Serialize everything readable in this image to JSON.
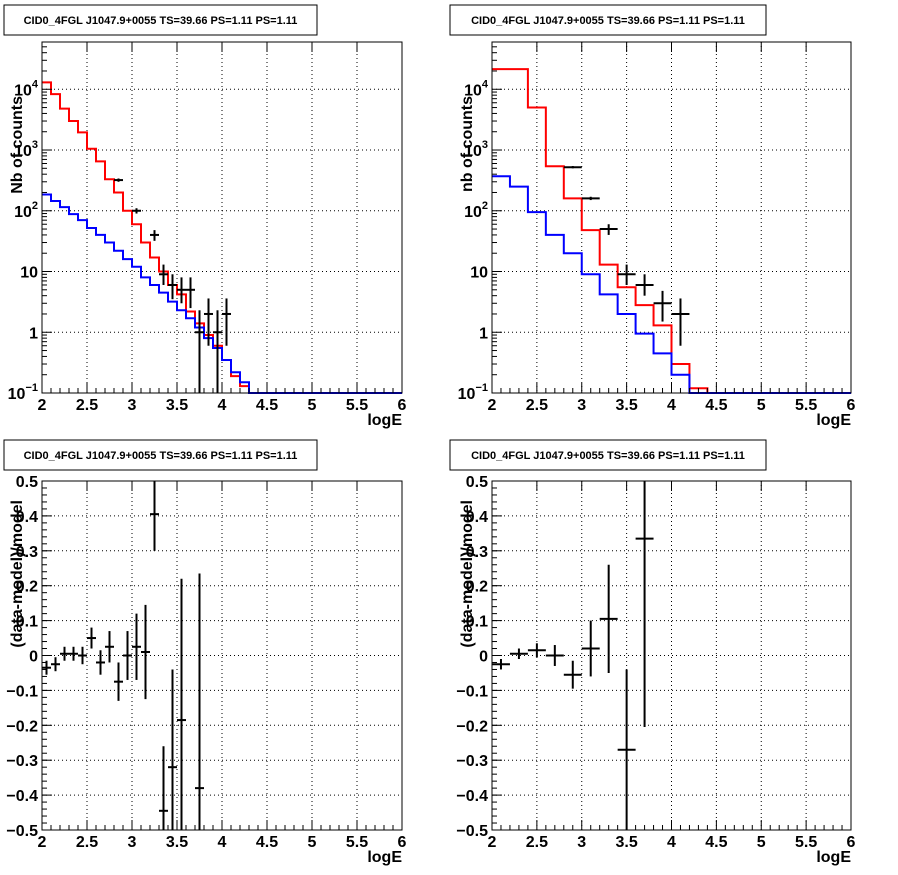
{
  "chart_data": [
    {
      "id": "top-left",
      "type": "histogram",
      "title": "CID0_4FGL J1047.9+0055 TS=39.66 PS=1.11 PS=1.11",
      "xlabel": "logE",
      "ylabel": "Nb of counts",
      "xlim": [
        2,
        6
      ],
      "ylim": [
        0.1,
        60000
      ],
      "yscale": "log",
      "grid": true,
      "xticks": [
        2,
        2.5,
        3,
        3.5,
        4,
        4.5,
        5,
        5.5,
        6
      ],
      "xtick_labels": [
        "2",
        "2.5",
        "3",
        "3.5",
        "4",
        "4.5",
        "5",
        "5.5",
        "6"
      ],
      "yticks": [
        0.1,
        1,
        10,
        100,
        1000,
        10000
      ],
      "ytick_labels": [
        {
          "base": "10",
          "exp": "−1"
        },
        {
          "base": "1",
          "exp": ""
        },
        {
          "base": "10",
          "exp": ""
        },
        {
          "base": "10",
          "exp": "2"
        },
        {
          "base": "10",
          "exp": "3"
        },
        {
          "base": "10",
          "exp": "4"
        }
      ],
      "bin_edges": [
        2.0,
        2.1,
        2.2,
        2.3,
        2.4,
        2.5,
        2.6,
        2.7,
        2.8,
        2.9,
        3.0,
        3.1,
        3.2,
        3.3,
        3.4,
        3.5,
        3.6,
        3.7,
        3.8,
        3.9,
        4.0,
        4.1,
        4.2,
        4.3,
        4.4,
        4.5,
        4.6,
        4.7,
        4.8,
        4.9,
        5.0,
        5.1,
        5.2,
        5.3,
        5.4,
        5.5,
        5.6,
        5.7,
        5.8,
        5.9,
        6.0
      ],
      "series": [
        {
          "color": "#ff0000",
          "style": "step",
          "values": [
            13000,
            8300,
            4800,
            3000,
            1950,
            1050,
            650,
            330,
            200,
            100,
            60,
            30,
            17,
            10,
            6,
            4.2,
            2.2,
            1.4,
            0.9,
            0.6,
            0.35,
            0.19,
            0.13,
            0.1,
            0.1,
            0.1,
            0.1,
            0.1,
            0.1,
            0.1,
            0.1,
            0.1,
            0.1,
            0.1,
            0.1,
            0.1,
            0.1,
            0.1,
            0.1,
            0.1
          ]
        },
        {
          "color": "#0000ff",
          "style": "step",
          "values": [
            185,
            145,
            115,
            88,
            70,
            52,
            40,
            30,
            22,
            16,
            12,
            8,
            6,
            4.5,
            3.2,
            2.3,
            1.7,
            1.2,
            0.8,
            0.55,
            0.35,
            0.22,
            0.15,
            0.1,
            0.1,
            0.1,
            0.1,
            0.1,
            0.1,
            0.1,
            0.1,
            0.1,
            0.1,
            0.1,
            0.1,
            0.1,
            0.1,
            0.1,
            0.1,
            0.1
          ]
        }
      ],
      "points": [
        {
          "x": 3.25,
          "y": 40,
          "ylo": 32,
          "yhi": 48,
          "xerr": 0.05
        },
        {
          "x": 3.35,
          "y": 9,
          "ylo": 6,
          "yhi": 13,
          "xerr": 0.05
        },
        {
          "x": 3.45,
          "y": 6,
          "ylo": 3.5,
          "yhi": 9,
          "xerr": 0.05
        },
        {
          "x": 3.55,
          "y": 5,
          "ylo": 3,
          "yhi": 8,
          "xerr": 0.05
        },
        {
          "x": 3.65,
          "y": 5,
          "ylo": 2.5,
          "yhi": 8,
          "xerr": 0.05
        },
        {
          "x": 3.75,
          "y": 1,
          "ylo": 0.1,
          "yhi": 2.3,
          "xerr": 0.05
        },
        {
          "x": 3.85,
          "y": 2,
          "ylo": 0.6,
          "yhi": 3.6,
          "xerr": 0.05
        },
        {
          "x": 3.95,
          "y": 1,
          "ylo": 0.1,
          "yhi": 2.3,
          "xerr": 0.05
        },
        {
          "x": 4.05,
          "y": 2,
          "ylo": 0.6,
          "yhi": 3.6,
          "xerr": 0.05
        },
        {
          "x": 2.85,
          "y": 320,
          "ylo": 300,
          "yhi": 340,
          "xerr": 0.05
        },
        {
          "x": 3.05,
          "y": 100,
          "ylo": 90,
          "yhi": 110,
          "xerr": 0.05
        }
      ]
    },
    {
      "id": "top-right",
      "type": "histogram",
      "title": "CID0_4FGL J1047.9+0055 TS=39.66 PS=1.11 PS=1.11",
      "xlabel": "logE",
      "ylabel": "nb of counts",
      "xlim": [
        2,
        6
      ],
      "ylim": [
        0.1,
        60000
      ],
      "yscale": "log",
      "grid": true,
      "xticks": [
        2,
        2.5,
        3,
        3.5,
        4,
        4.5,
        5,
        5.5,
        6
      ],
      "xtick_labels": [
        "2",
        "2.5",
        "3",
        "3.5",
        "4",
        "4.5",
        "5",
        "5.5",
        "6"
      ],
      "yticks": [
        0.1,
        1,
        10,
        100,
        1000,
        10000
      ],
      "ytick_labels": [
        {
          "base": "10",
          "exp": "−1"
        },
        {
          "base": "1",
          "exp": ""
        },
        {
          "base": "10",
          "exp": ""
        },
        {
          "base": "10",
          "exp": "2"
        },
        {
          "base": "10",
          "exp": "3"
        },
        {
          "base": "10",
          "exp": "4"
        }
      ],
      "bin_edges": [
        2.0,
        2.2,
        2.4,
        2.6,
        2.8,
        3.0,
        3.2,
        3.4,
        3.6,
        3.8,
        4.0,
        4.2,
        4.4,
        4.6,
        4.8,
        5.0,
        5.2,
        5.4,
        5.6,
        5.8,
        6.0
      ],
      "series": [
        {
          "color": "#ff0000",
          "style": "step",
          "values": [
            21500,
            21500,
            5000,
            540,
            160,
            48,
            13,
            5.5,
            2.8,
            1.3,
            0.3,
            0.12,
            0.1,
            0.1,
            0.1,
            0.1,
            0.1,
            0.1,
            0.1,
            0.1
          ]
        },
        {
          "color": "#0000ff",
          "style": "step",
          "values": [
            370,
            250,
            95,
            40,
            20,
            9,
            4.2,
            2.0,
            0.95,
            0.45,
            0.2,
            0.1,
            0.1,
            0.1,
            0.1,
            0.1,
            0.1,
            0.1,
            0.1,
            0.1
          ]
        }
      ],
      "points": [
        {
          "x": 3.3,
          "y": 50,
          "ylo": 40,
          "yhi": 60,
          "xerr": 0.1
        },
        {
          "x": 3.5,
          "y": 9,
          "ylo": 6,
          "yhi": 13,
          "xerr": 0.1
        },
        {
          "x": 3.7,
          "y": 6,
          "ylo": 4,
          "yhi": 9,
          "xerr": 0.1
        },
        {
          "x": 3.9,
          "y": 3,
          "ylo": 1.5,
          "yhi": 4.8,
          "xerr": 0.1
        },
        {
          "x": 4.1,
          "y": 2,
          "ylo": 0.6,
          "yhi": 3.6,
          "xerr": 0.1
        },
        {
          "x": 2.9,
          "y": 520,
          "ylo": 500,
          "yhi": 545,
          "xerr": 0.1
        },
        {
          "x": 3.1,
          "y": 160,
          "ylo": 150,
          "yhi": 170,
          "xerr": 0.1
        }
      ]
    },
    {
      "id": "bottom-left",
      "type": "scatter",
      "title": "CID0_4FGL J1047.9+0055 TS=39.66 PS=1.11 PS=1.11",
      "xlabel": "logE",
      "ylabel": "(data-model)/model",
      "xlim": [
        2,
        6
      ],
      "ylim": [
        -0.5,
        0.5
      ],
      "yscale": "linear",
      "grid": true,
      "xticks": [
        2,
        2.5,
        3,
        3.5,
        4,
        4.5,
        5,
        5.5,
        6
      ],
      "xtick_labels": [
        "2",
        "2.5",
        "3",
        "3.5",
        "4",
        "4.5",
        "5",
        "5.5",
        "6"
      ],
      "yticks": [
        -0.5,
        -0.4,
        -0.3,
        -0.2,
        -0.1,
        0,
        0.1,
        0.2,
        0.3,
        0.4,
        0.5
      ],
      "ytick_labels": [
        "−0.5",
        "−0.4",
        "−0.3",
        "−0.2",
        "−0.1",
        "0",
        "0.1",
        "0.2",
        "0.3",
        "0.4",
        "0.5"
      ],
      "points": [
        {
          "x": 2.05,
          "y": -0.035,
          "ylo": -0.055,
          "yhi": -0.015,
          "xerr": 0.05
        },
        {
          "x": 2.15,
          "y": -0.025,
          "ylo": -0.045,
          "yhi": -0.005,
          "xerr": 0.05
        },
        {
          "x": 2.25,
          "y": 0.005,
          "ylo": -0.015,
          "yhi": 0.025,
          "xerr": 0.05
        },
        {
          "x": 2.35,
          "y": 0.005,
          "ylo": -0.015,
          "yhi": 0.025,
          "xerr": 0.05
        },
        {
          "x": 2.45,
          "y": 0.0,
          "ylo": -0.025,
          "yhi": 0.025,
          "xerr": 0.05
        },
        {
          "x": 2.55,
          "y": 0.05,
          "ylo": 0.02,
          "yhi": 0.08,
          "xerr": 0.05
        },
        {
          "x": 2.65,
          "y": -0.02,
          "ylo": -0.055,
          "yhi": 0.015,
          "xerr": 0.05
        },
        {
          "x": 2.75,
          "y": 0.025,
          "ylo": -0.02,
          "yhi": 0.07,
          "xerr": 0.05
        },
        {
          "x": 2.85,
          "y": -0.075,
          "ylo": -0.13,
          "yhi": -0.02,
          "xerr": 0.05
        },
        {
          "x": 2.95,
          "y": 0.0,
          "ylo": -0.07,
          "yhi": 0.07,
          "xerr": 0.05
        },
        {
          "x": 3.05,
          "y": 0.025,
          "ylo": -0.07,
          "yhi": 0.12,
          "xerr": 0.05
        },
        {
          "x": 3.15,
          "y": 0.01,
          "ylo": -0.125,
          "yhi": 0.145,
          "xerr": 0.05
        },
        {
          "x": 3.25,
          "y": 0.405,
          "ylo": 0.3,
          "yhi": 0.5,
          "xerr": 0.05
        },
        {
          "x": 3.35,
          "y": -0.445,
          "ylo": -0.5,
          "yhi": -0.26,
          "xerr": 0.05
        },
        {
          "x": 3.45,
          "y": -0.32,
          "ylo": -0.5,
          "yhi": -0.04,
          "xerr": 0.05
        },
        {
          "x": 3.55,
          "y": -0.185,
          "ylo": -0.5,
          "yhi": 0.22,
          "xerr": 0.05
        },
        {
          "x": 3.75,
          "y": -0.38,
          "ylo": -0.5,
          "yhi": 0.235,
          "xerr": 0.05
        }
      ]
    },
    {
      "id": "bottom-right",
      "type": "scatter",
      "title": "CID0_4FGL J1047.9+0055 TS=39.66 PS=1.11 PS=1.11",
      "xlabel": "logE",
      "ylabel": "(data-model)/model",
      "xlim": [
        2,
        6
      ],
      "ylim": [
        -0.5,
        0.5
      ],
      "yscale": "linear",
      "grid": true,
      "xticks": [
        2,
        2.5,
        3,
        3.5,
        4,
        4.5,
        5,
        5.5,
        6
      ],
      "xtick_labels": [
        "2",
        "2.5",
        "3",
        "3.5",
        "4",
        "4.5",
        "5",
        "5.5",
        "6"
      ],
      "yticks": [
        -0.5,
        -0.4,
        -0.3,
        -0.2,
        -0.1,
        0,
        0.1,
        0.2,
        0.3,
        0.4,
        0.5
      ],
      "ytick_labels": [
        "−0.5",
        "−0.4",
        "−0.3",
        "−0.2",
        "−0.1",
        "0",
        "0.1",
        "0.2",
        "0.3",
        "0.4",
        "0.5"
      ],
      "points": [
        {
          "x": 2.1,
          "y": -0.025,
          "ylo": -0.04,
          "yhi": -0.01,
          "xerr": 0.1
        },
        {
          "x": 2.3,
          "y": 0.005,
          "ylo": -0.01,
          "yhi": 0.02,
          "xerr": 0.1
        },
        {
          "x": 2.5,
          "y": 0.015,
          "ylo": -0.005,
          "yhi": 0.035,
          "xerr": 0.1
        },
        {
          "x": 2.7,
          "y": 0.0,
          "ylo": -0.03,
          "yhi": 0.03,
          "xerr": 0.1
        },
        {
          "x": 2.9,
          "y": -0.055,
          "ylo": -0.095,
          "yhi": -0.015,
          "xerr": 0.1
        },
        {
          "x": 3.1,
          "y": 0.02,
          "ylo": -0.06,
          "yhi": 0.1,
          "xerr": 0.1
        },
        {
          "x": 3.3,
          "y": 0.105,
          "ylo": -0.05,
          "yhi": 0.26,
          "xerr": 0.1
        },
        {
          "x": 3.5,
          "y": -0.27,
          "ylo": -0.5,
          "yhi": -0.04,
          "xerr": 0.1
        },
        {
          "x": 3.7,
          "y": 0.335,
          "ylo": -0.205,
          "yhi": 0.5,
          "xerr": 0.1
        }
      ]
    }
  ]
}
